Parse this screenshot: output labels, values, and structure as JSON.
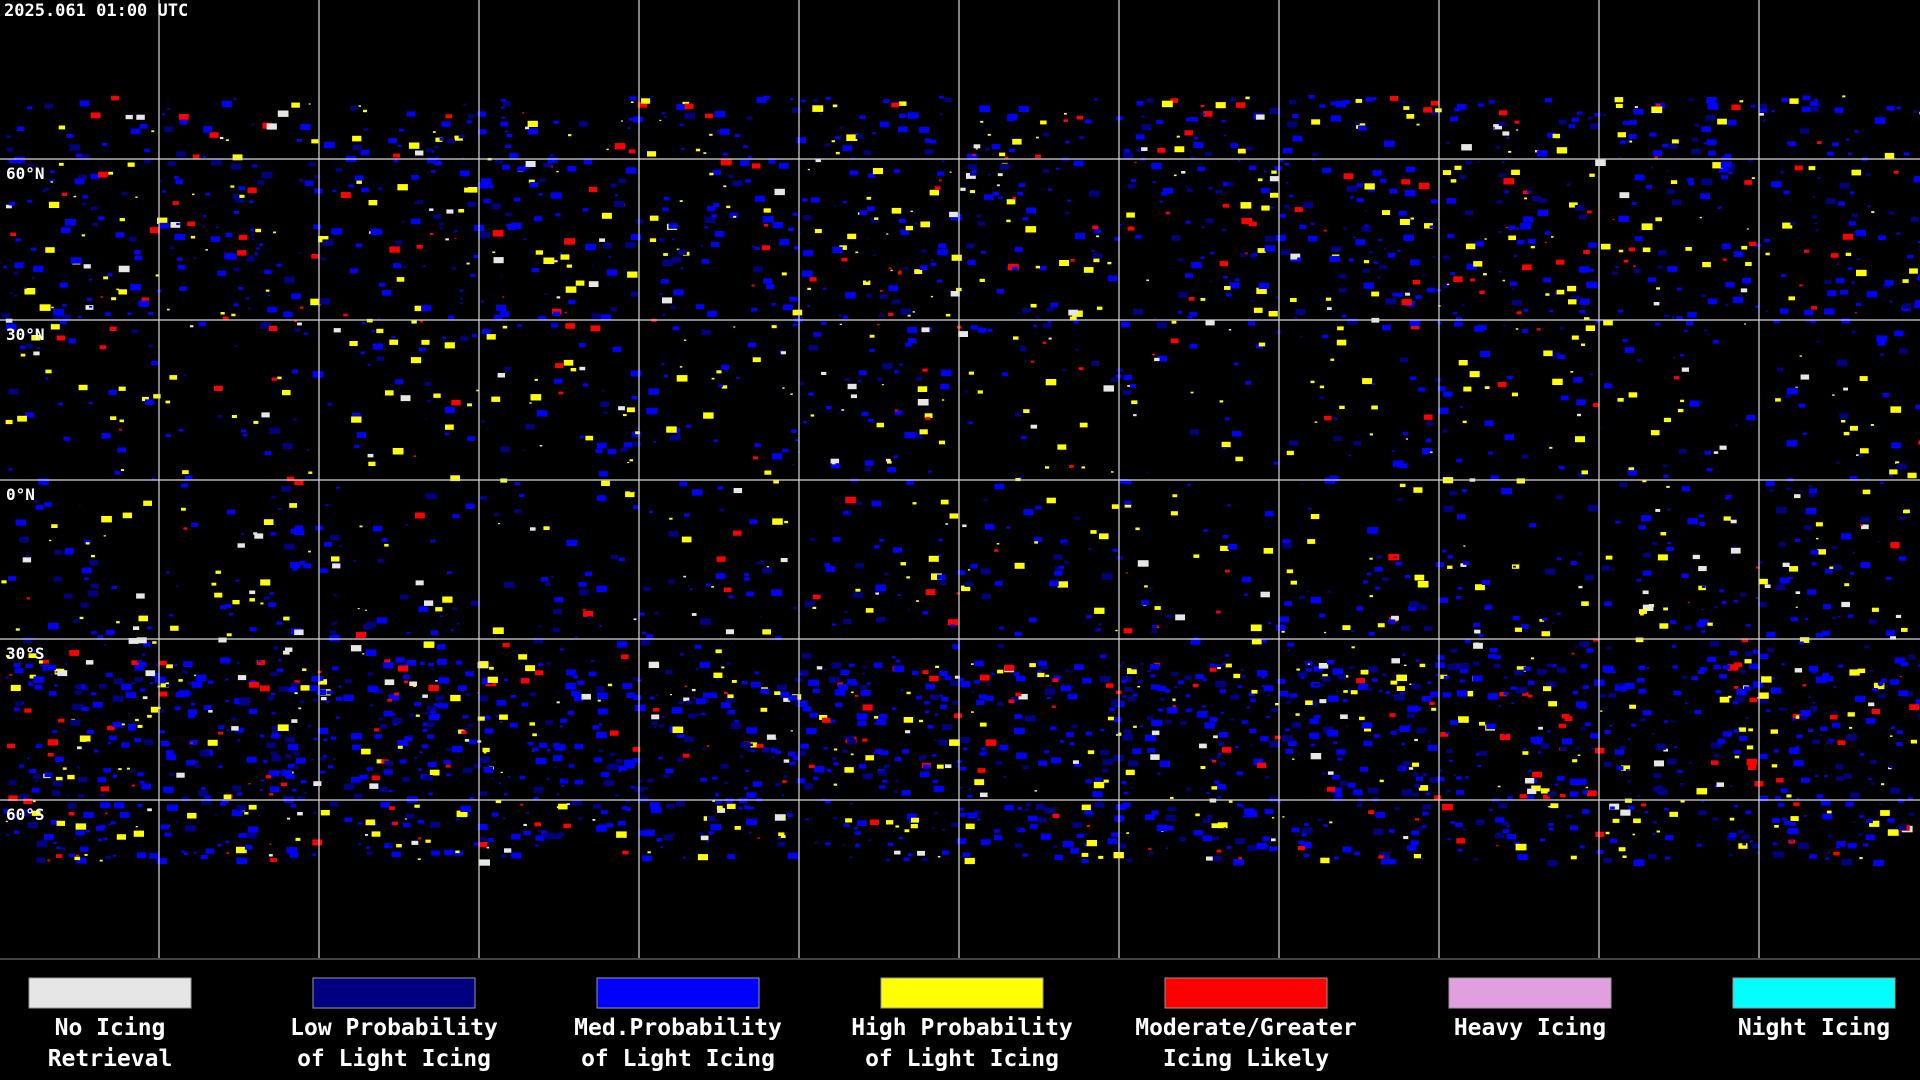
{
  "header": {
    "title": "2025.061 01:00 UTC"
  },
  "map": {
    "latitude_labels": [
      "60°N",
      "30°N",
      "0°N",
      "30°S",
      "60°S"
    ]
  },
  "legend": [
    {
      "lines": [
        "No Icing",
        "Retrieval"
      ],
      "color": "#e6e6e6"
    },
    {
      "lines": [
        "Low Probability",
        "of Light Icing"
      ],
      "color": "#000080"
    },
    {
      "lines": [
        "Med.Probability",
        "of Light Icing"
      ],
      "color": "#0000ff"
    },
    {
      "lines": [
        "High Probability",
        "of Light Icing"
      ],
      "color": "#ffff00"
    },
    {
      "lines": [
        "Moderate/Greater",
        "Icing Likely"
      ],
      "color": "#ff0000"
    },
    {
      "lines": [
        "Heavy Icing"
      ],
      "color": "#e0a0e0"
    },
    {
      "lines": [
        "Night Icing"
      ],
      "color": "#00ffff"
    }
  ]
}
